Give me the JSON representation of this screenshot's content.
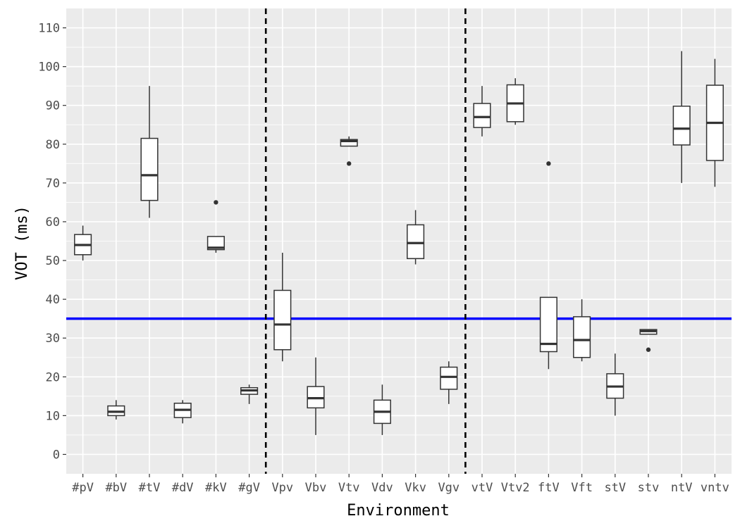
{
  "chart_data": {
    "type": "boxplot",
    "xlabel": "Environment",
    "ylabel": "VOT (ms)",
    "ylim": [
      -5,
      115
    ],
    "yticks": [
      0,
      10,
      20,
      30,
      40,
      50,
      60,
      70,
      80,
      90,
      100,
      110
    ],
    "grid": true,
    "categories": [
      "#pV",
      "#bV",
      "#tV",
      "#dV",
      "#kV",
      "#gV",
      "Vpv",
      "Vbv",
      "Vtv",
      "Vdv",
      "Vkv",
      "Vgv",
      "vtV",
      "Vtv2",
      "ftV",
      "Vft",
      "stV",
      "stv",
      "ntV",
      "vntv"
    ],
    "boxes": [
      {
        "min": 50,
        "q1": 51.5,
        "median": 54,
        "q3": 56.7,
        "max": 59,
        "outliers": []
      },
      {
        "min": 9,
        "q1": 10,
        "median": 11,
        "q3": 12.5,
        "max": 14,
        "outliers": []
      },
      {
        "min": 61,
        "q1": 65.5,
        "median": 72,
        "q3": 81.5,
        "max": 95,
        "outliers": []
      },
      {
        "min": 8,
        "q1": 9.5,
        "median": 11.5,
        "q3": 13.2,
        "max": 14,
        "outliers": []
      },
      {
        "min": 52,
        "q1": 52.8,
        "median": 53.3,
        "q3": 56.2,
        "max": 56.2,
        "outliers": [
          65
        ]
      },
      {
        "min": 13,
        "q1": 15.5,
        "median": 16.5,
        "q3": 17.2,
        "max": 18,
        "outliers": []
      },
      {
        "min": 24,
        "q1": 27,
        "median": 33.5,
        "q3": 42.3,
        "max": 52,
        "outliers": []
      },
      {
        "min": 5,
        "q1": 12,
        "median": 14.5,
        "q3": 17.5,
        "max": 25,
        "outliers": []
      },
      {
        "min": 79.5,
        "q1": 79.5,
        "median": 80.8,
        "q3": 81.2,
        "max": 82,
        "outliers": [
          75
        ]
      },
      {
        "min": 5,
        "q1": 8,
        "median": 11,
        "q3": 14,
        "max": 18,
        "outliers": []
      },
      {
        "min": 49,
        "q1": 50.5,
        "median": 54.5,
        "q3": 59.2,
        "max": 63,
        "outliers": []
      },
      {
        "min": 13,
        "q1": 16.8,
        "median": 20,
        "q3": 22.5,
        "max": 24,
        "outliers": []
      },
      {
        "min": 82,
        "q1": 84.3,
        "median": 87,
        "q3": 90.5,
        "max": 95,
        "outliers": []
      },
      {
        "min": 85,
        "q1": 85.8,
        "median": 90.5,
        "q3": 95.3,
        "max": 97,
        "outliers": []
      },
      {
        "min": 22,
        "q1": 26.5,
        "median": 28.5,
        "q3": 40.5,
        "max": 40.5,
        "outliers": [
          75
        ]
      },
      {
        "min": 24,
        "q1": 25,
        "median": 29.5,
        "q3": 35.5,
        "max": 40,
        "outliers": []
      },
      {
        "min": 10,
        "q1": 14.5,
        "median": 17.5,
        "q3": 20.8,
        "max": 26,
        "outliers": []
      },
      {
        "min": 31,
        "q1": 31,
        "median": 31.8,
        "q3": 32.2,
        "max": 32.2,
        "outliers": [
          27
        ]
      },
      {
        "min": 70,
        "q1": 79.8,
        "median": 84,
        "q3": 89.8,
        "max": 104,
        "outliers": []
      },
      {
        "min": 69,
        "q1": 75.8,
        "median": 85.5,
        "q3": 95.2,
        "max": 102,
        "outliers": []
      }
    ],
    "reference_line": {
      "y": 35,
      "color": "#0000ff"
    },
    "dividers_after_category_index": [
      5,
      11
    ],
    "colors": {
      "panel": "#ebebeb",
      "grid": "#ffffff",
      "box": "#333333",
      "divider": "#000000"
    }
  }
}
